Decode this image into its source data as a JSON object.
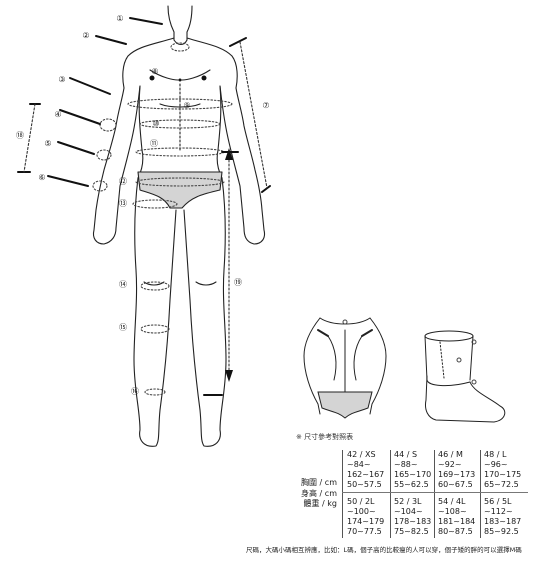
{
  "markers": [
    "①",
    "②",
    "③",
    "④",
    "⑤",
    "⑥",
    "⑦",
    "⑧",
    "⑨",
    "⑩",
    "⑪",
    "⑫",
    "⑬",
    "⑭",
    "⑮",
    "⑯",
    "⑰",
    "⑱",
    "⑲"
  ],
  "note": "※ 尺寸參考對照表",
  "row_labels": [
    "胸圍 / cm",
    "身高 / cm",
    "體重 / kg"
  ],
  "sizes_top": [
    {
      "size": "42 / XS",
      "chest": "~84~",
      "height": "162~167",
      "weight": "50~57.5"
    },
    {
      "size": "44 / S",
      "chest": "~88~",
      "height": "165~170",
      "weight": "55~62.5"
    },
    {
      "size": "46 / M",
      "chest": "~92~",
      "height": "169~173",
      "weight": "60~67.5"
    },
    {
      "size": "48 / L",
      "chest": "~96~",
      "height": "170~175",
      "weight": "65~72.5"
    }
  ],
  "sizes_bottom": [
    {
      "size": "50 / 2L",
      "chest": "~100~",
      "height": "174~179",
      "weight": "70~77.5"
    },
    {
      "size": "52 / 3L",
      "chest": "~104~",
      "height": "178~183",
      "weight": "75~82.5"
    },
    {
      "size": "54 / 4L",
      "chest": "~108~",
      "height": "181~184",
      "weight": "80~87.5"
    },
    {
      "size": "56 / 5L",
      "chest": "~112~",
      "height": "183~187",
      "weight": "85~92.5"
    }
  ],
  "footer": "尺碼，大碼小碼相互辨應，比如：L碼，個子高的比較瘦的人可以穿，個子矮的胖的可以選擇M碼"
}
